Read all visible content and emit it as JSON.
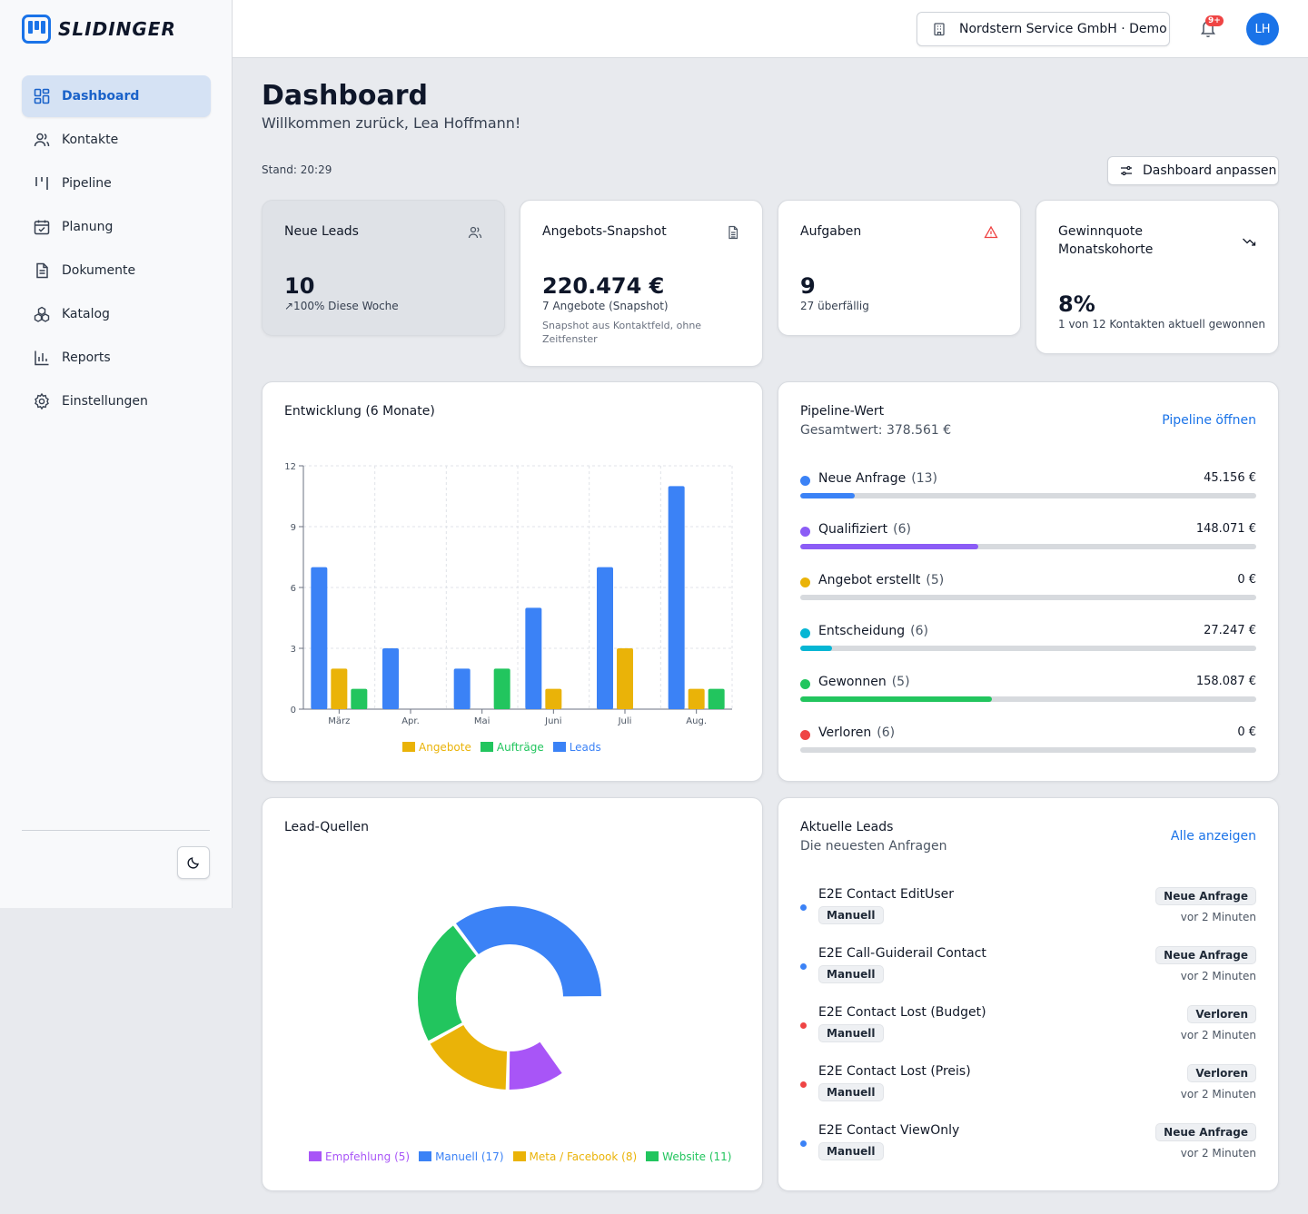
{
  "brand": {
    "name": "SLIDINGER"
  },
  "sidebar": {
    "items": [
      {
        "label": "Dashboard",
        "icon": "dashboard-icon",
        "active": true
      },
      {
        "label": "Kontakte",
        "icon": "users-icon"
      },
      {
        "label": "Pipeline",
        "icon": "pipeline-icon"
      },
      {
        "label": "Planung",
        "icon": "calendar-icon"
      },
      {
        "label": "Dokumente",
        "icon": "document-icon"
      },
      {
        "label": "Katalog",
        "icon": "boxes-icon"
      },
      {
        "label": "Reports",
        "icon": "bar-chart-icon"
      },
      {
        "label": "Einstellungen",
        "icon": "gear-icon"
      }
    ]
  },
  "topbar": {
    "company": "Nordstern Service GmbH · Demo",
    "notification_badge": "9+",
    "avatar_initials": "LH"
  },
  "header": {
    "title": "Dashboard",
    "subtitle": "Willkommen zurück, Lea Hoffmann!",
    "stand": "Stand: 20:29",
    "customize_label": "Dashboard anpassen"
  },
  "kpis": {
    "leads": {
      "title": "Neue Leads",
      "value": "10",
      "sub": "↗100% Diese Woche"
    },
    "offers": {
      "title": "Angebots-Snapshot",
      "value": "220.474 €",
      "sub": "7 Angebote (Snapshot)",
      "note": "Snapshot aus Kontaktfeld, ohne Zeitfenster"
    },
    "tasks": {
      "title": "Aufgaben",
      "value": "9",
      "sub": "27 überfällig"
    },
    "winrate": {
      "title": "Gewinnquote Monatskohorte",
      "value": "8%",
      "sub": "1 von 12 Kontakten aktuell gewonnen"
    }
  },
  "development": {
    "title": "Entwicklung (6 Monate)"
  },
  "chart_data": [
    {
      "type": "bar",
      "categories": [
        "März",
        "Apr.",
        "Mai",
        "Juni",
        "Juli",
        "Aug."
      ],
      "series": [
        {
          "name": "Leads",
          "color": "#3b82f6",
          "values": [
            7,
            3,
            2,
            5,
            7,
            11
          ]
        },
        {
          "name": "Angebote",
          "color": "#eab308",
          "values": [
            2,
            0,
            0,
            1,
            3,
            1
          ]
        },
        {
          "name": "Aufträge",
          "color": "#22c55e",
          "values": [
            1,
            0,
            2,
            0,
            0,
            1
          ]
        }
      ],
      "yticks": [
        "0",
        "3",
        "6",
        "9",
        "12"
      ],
      "ylim": [
        0,
        12
      ],
      "legend": [
        "Angebote",
        "Aufträge",
        "Leads"
      ],
      "legend_position": "bottom"
    },
    {
      "type": "pie",
      "title": "Lead-Quellen",
      "slices": [
        {
          "name": "Empfehlung",
          "value": 5,
          "color": "#a855f7",
          "label": "Empfehlung (5)"
        },
        {
          "name": "Manuell",
          "value": 17,
          "color": "#3b82f6",
          "label": "Manuell (17)"
        },
        {
          "name": "Meta / Facebook",
          "value": 8,
          "color": "#eab308",
          "label": "Meta / Facebook (8)"
        },
        {
          "name": "Website",
          "value": 11,
          "color": "#22c55e",
          "label": "Website (11)"
        }
      ],
      "legend_position": "bottom"
    }
  ],
  "pipeline": {
    "title": "Pipeline-Wert",
    "subtitle": "Gesamtwert: 378.561 €",
    "link": "Pipeline öffnen",
    "stages": [
      {
        "label": "Neue Anfrage",
        "count": "(13)",
        "value": "45.156 €",
        "fraction": 0.12,
        "color": "#3b82f6"
      },
      {
        "label": "Qualifiziert",
        "count": "(6)",
        "value": "148.071 €",
        "fraction": 0.39,
        "color": "#8b5cf6"
      },
      {
        "label": "Angebot erstellt",
        "count": "(5)",
        "value": "0 €",
        "fraction": 0,
        "color": "#eab308"
      },
      {
        "label": "Entscheidung",
        "count": "(6)",
        "value": "27.247 €",
        "fraction": 0.07,
        "color": "#06b6d4"
      },
      {
        "label": "Gewonnen",
        "count": "(5)",
        "value": "158.087 €",
        "fraction": 0.42,
        "color": "#22c55e"
      },
      {
        "label": "Verloren",
        "count": "(6)",
        "value": "0 €",
        "fraction": 0,
        "color": "#ef4444"
      }
    ]
  },
  "sources": {
    "title": "Lead-Quellen"
  },
  "recent_leads": {
    "title": "Aktuelle Leads",
    "subtitle": "Die neuesten Anfragen",
    "link": "Alle anzeigen",
    "items": [
      {
        "name": "E2E Contact EditUser",
        "tag": "Manuell",
        "status": "Neue Anfrage",
        "time": "vor 2 Minuten",
        "color": "#3b82f6"
      },
      {
        "name": "E2E Call-Guiderail Contact",
        "tag": "Manuell",
        "status": "Neue Anfrage",
        "time": "vor 2 Minuten",
        "color": "#3b82f6"
      },
      {
        "name": "E2E Contact Lost (Budget)",
        "tag": "Manuell",
        "status": "Verloren",
        "time": "vor 2 Minuten",
        "color": "#ef4444"
      },
      {
        "name": "E2E Contact Lost (Preis)",
        "tag": "Manuell",
        "status": "Verloren",
        "time": "vor 2 Minuten",
        "color": "#ef4444"
      },
      {
        "name": "E2E Contact ViewOnly",
        "tag": "Manuell",
        "status": "Neue Anfrage",
        "time": "vor 2 Minuten",
        "color": "#3b82f6"
      }
    ]
  }
}
